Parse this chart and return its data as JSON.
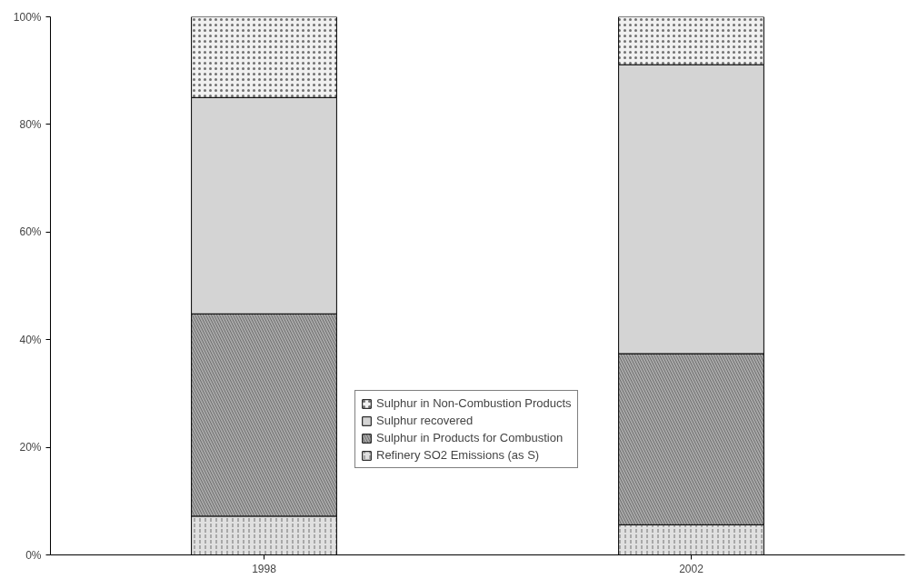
{
  "chart_data": {
    "type": "bar",
    "stacked": true,
    "categories": [
      "1998",
      "2002"
    ],
    "series": [
      {
        "name": "Refinery SO2 Emissions (as S)",
        "color": "#e0e0e0",
        "values": [
          7.2,
          5.6
        ]
      },
      {
        "name": "Sulphur in Products for Combustion",
        "color": "#a8a8a8",
        "values": [
          37.6,
          31.8
        ]
      },
      {
        "name": "Sulphur recovered",
        "color": "#d4d4d4",
        "values": [
          40.2,
          53.7
        ]
      },
      {
        "name": "Sulphur in Non-Combustion Products",
        "color": "#f0f0f0",
        "values": [
          15.0,
          8.9
        ]
      }
    ],
    "ylim": [
      0,
      100
    ],
    "yticks": [
      {
        "value": 0,
        "label": "0%"
      },
      {
        "value": 20,
        "label": "20%"
      },
      {
        "value": 40,
        "label": "40%"
      },
      {
        "value": 60,
        "label": "60%"
      },
      {
        "value": 80,
        "label": "80%"
      },
      {
        "value": 100,
        "label": "100%"
      }
    ],
    "grid": false,
    "legend": "bottom"
  }
}
